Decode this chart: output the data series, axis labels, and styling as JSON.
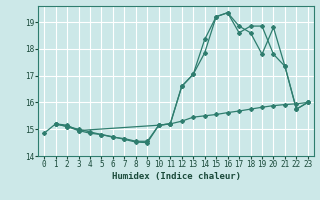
{
  "xlabel": "Humidex (Indice chaleur)",
  "background_color": "#cce8e8",
  "grid_color": "#ffffff",
  "line_color": "#2e7d6e",
  "xlim": [
    -0.5,
    23.5
  ],
  "ylim": [
    14.0,
    19.6
  ],
  "xticks": [
    0,
    1,
    2,
    3,
    4,
    5,
    6,
    7,
    8,
    9,
    10,
    11,
    12,
    13,
    14,
    15,
    16,
    17,
    18,
    19,
    20,
    21,
    22,
    23
  ],
  "yticks": [
    14,
    15,
    16,
    17,
    18,
    19
  ],
  "line1": {
    "x": [
      0,
      1,
      2,
      3,
      4,
      5,
      6,
      7,
      8,
      9,
      10,
      11,
      12,
      13,
      14,
      15,
      16,
      17,
      18,
      19,
      20,
      21,
      22,
      23
    ],
    "y": [
      14.85,
      15.2,
      15.15,
      14.95,
      14.85,
      14.8,
      14.7,
      14.65,
      14.55,
      14.55,
      15.15,
      15.2,
      15.3,
      15.45,
      15.5,
      15.55,
      15.62,
      15.68,
      15.75,
      15.82,
      15.88,
      15.92,
      15.95,
      16.0
    ]
  },
  "line2": {
    "x": [
      1,
      2,
      3,
      4,
      5,
      6,
      7,
      8,
      9,
      10,
      11,
      12,
      13,
      14,
      15,
      16,
      17,
      18,
      19,
      20,
      21,
      22,
      23
    ],
    "y": [
      15.2,
      15.1,
      15.0,
      14.9,
      14.8,
      14.72,
      14.62,
      14.52,
      14.5,
      15.15,
      15.2,
      16.6,
      17.05,
      17.85,
      19.2,
      19.35,
      18.85,
      18.6,
      17.8,
      18.8,
      17.35,
      15.75,
      16.0
    ]
  },
  "line3": {
    "x": [
      1,
      2,
      3,
      10,
      11,
      12,
      13,
      14,
      15,
      16,
      17,
      18,
      19,
      20,
      21,
      22,
      23
    ],
    "y": [
      15.2,
      15.1,
      14.95,
      15.15,
      15.2,
      16.6,
      17.05,
      18.35,
      19.2,
      19.35,
      18.6,
      18.85,
      18.85,
      17.8,
      17.35,
      15.75,
      16.0
    ]
  }
}
